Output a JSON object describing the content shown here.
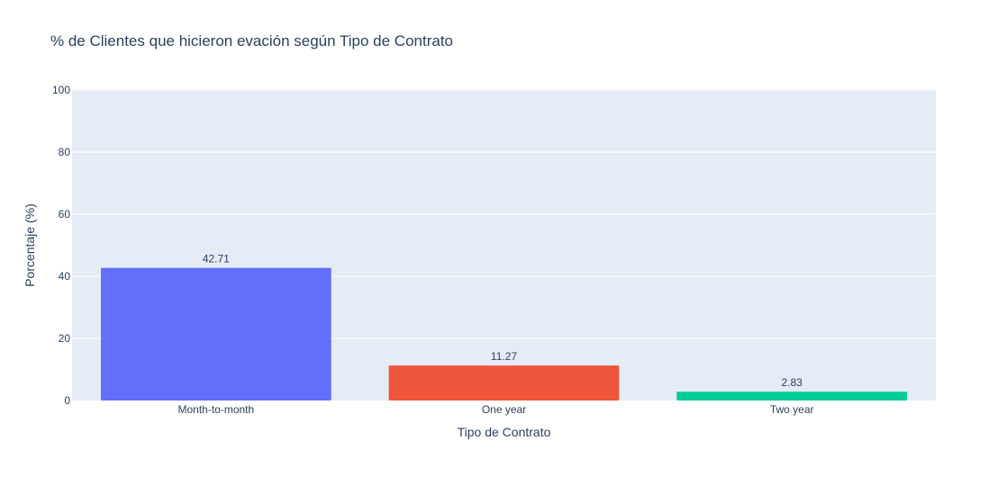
{
  "chart_data": {
    "type": "bar",
    "title": "% de Clientes que hicieron evación según Tipo de Contrato",
    "xlabel": "Tipo de Contrato",
    "ylabel": "Porcentaje (%)",
    "categories": [
      "Month-to-month",
      "One year",
      "Two year"
    ],
    "values": [
      42.71,
      11.27,
      2.83
    ],
    "data_labels": [
      "42.71",
      "11.27",
      "2.83"
    ],
    "bar_colors": [
      "#636efa",
      "#ef553b",
      "#00cc96"
    ],
    "ylim": [
      0,
      100
    ],
    "yticks": [
      0,
      20,
      40,
      60,
      80,
      100
    ],
    "grid": true,
    "legend": false
  },
  "colors": {
    "plot_background": "#e5ecf6",
    "gridline": "#ffffff",
    "text": "#2a3f5f"
  }
}
